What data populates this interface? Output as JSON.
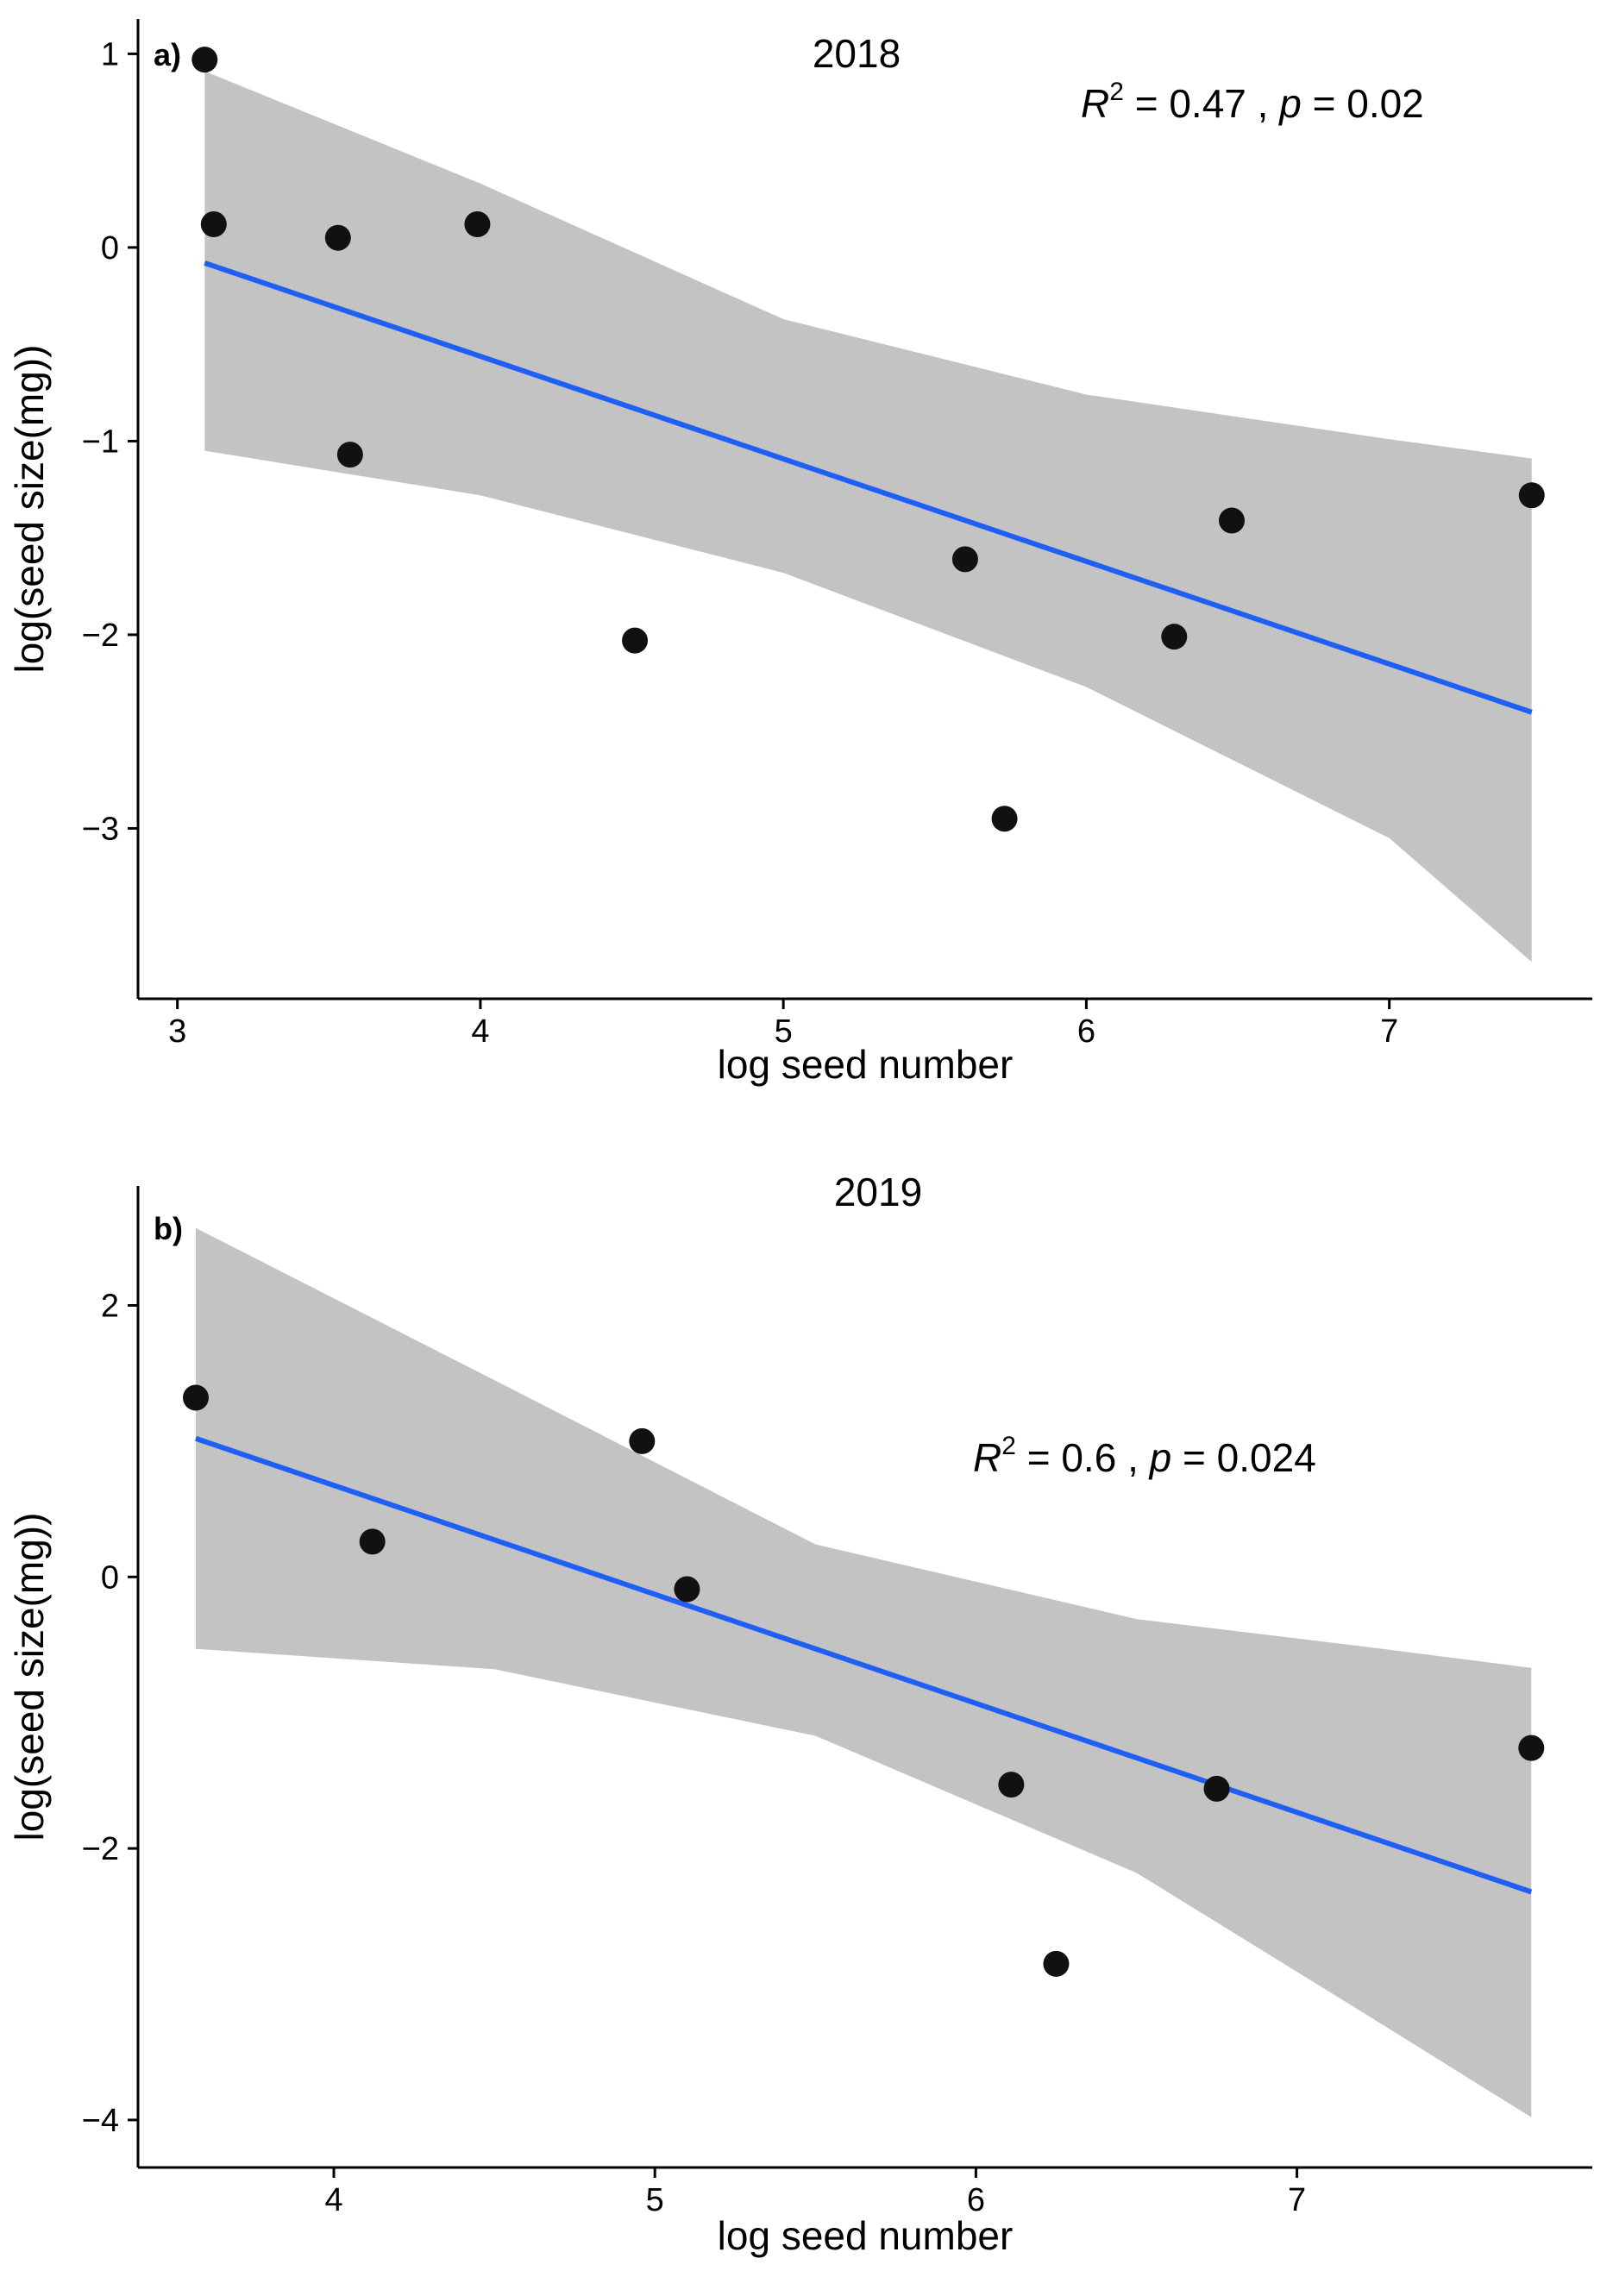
{
  "chart_data": [
    {
      "type": "scatter",
      "panel_label": "a)",
      "title": "2018",
      "xlabel": "log seed number",
      "ylabel": "log(seed size(mg))",
      "xlim": [
        2.87,
        7.67
      ],
      "ylim": [
        -3.88,
        1.18
      ],
      "xticks": [
        3,
        4,
        5,
        6,
        7
      ],
      "yticks": [
        1,
        0,
        -1,
        -2,
        -3
      ],
      "ytick_labels": [
        "1",
        "0",
        "−1",
        "−2",
        "−3"
      ],
      "stats": {
        "r_label": "R",
        "r_exp": "2",
        "r_value": " = 0.47 , ",
        "p_label": "p",
        "p_value": " = 0.02"
      },
      "points": [
        {
          "x": 3.09,
          "y": 0.97
        },
        {
          "x": 3.12,
          "y": 0.12
        },
        {
          "x": 3.53,
          "y": 0.05
        },
        {
          "x": 3.57,
          "y": -1.07
        },
        {
          "x": 3.99,
          "y": 0.12
        },
        {
          "x": 4.51,
          "y": -2.03
        },
        {
          "x": 5.6,
          "y": -1.61
        },
        {
          "x": 5.73,
          "y": -2.95
        },
        {
          "x": 6.29,
          "y": -2.01
        },
        {
          "x": 6.48,
          "y": -1.41
        },
        {
          "x": 7.47,
          "y": -1.28
        }
      ],
      "fit": {
        "x": [
          3.09,
          7.47
        ],
        "y": [
          -0.08,
          -2.4
        ]
      },
      "confidence_band": {
        "x": [
          3.09,
          4.0,
          5.0,
          6.0,
          7.0,
          7.47
        ],
        "upper": [
          0.91,
          0.33,
          -0.37,
          -0.76,
          -0.99,
          -1.09
        ],
        "lower": [
          -1.05,
          -1.28,
          -1.68,
          -2.27,
          -3.05,
          -3.69
        ]
      },
      "colors": {
        "line": "#1f5ff5",
        "band": "#c3c3c3",
        "point": "#111111"
      }
    },
    {
      "type": "scatter",
      "panel_label": "b)",
      "title": "2019",
      "xlabel": "log seed number",
      "ylabel": "log(seed size(mg))",
      "xlim": [
        3.39,
        7.92
      ],
      "ylim": [
        -4.35,
        2.88
      ],
      "xticks": [
        4,
        5,
        6,
        7
      ],
      "yticks": [
        2,
        0,
        -2,
        -4
      ],
      "ytick_labels": [
        "2",
        "0",
        "−2",
        "−4"
      ],
      "stats": {
        "r_label": "R",
        "r_exp": "2",
        "r_value": " = 0.6 , ",
        "p_label": "p",
        "p_value": " = 0.024"
      },
      "points": [
        {
          "x": 3.57,
          "y": 1.32
        },
        {
          "x": 4.12,
          "y": 0.26
        },
        {
          "x": 4.96,
          "y": 1.0
        },
        {
          "x": 5.1,
          "y": -0.09
        },
        {
          "x": 6.11,
          "y": -1.53
        },
        {
          "x": 6.25,
          "y": -2.85
        },
        {
          "x": 6.75,
          "y": -1.56
        },
        {
          "x": 7.73,
          "y": -1.26
        }
      ],
      "fit": {
        "x": [
          3.57,
          7.73
        ],
        "y": [
          1.02,
          -2.32
        ]
      },
      "confidence_band": {
        "x": [
          3.57,
          4.5,
          5.5,
          6.5,
          7.2,
          7.73
        ],
        "upper": [
          2.57,
          1.45,
          0.24,
          -0.31,
          -0.51,
          -0.67
        ],
        "lower": [
          -0.53,
          -0.68,
          -1.17,
          -2.18,
          -3.2,
          -3.98
        ]
      },
      "colors": {
        "line": "#1f5ff5",
        "band": "#c3c3c3",
        "point": "#111111"
      }
    }
  ]
}
